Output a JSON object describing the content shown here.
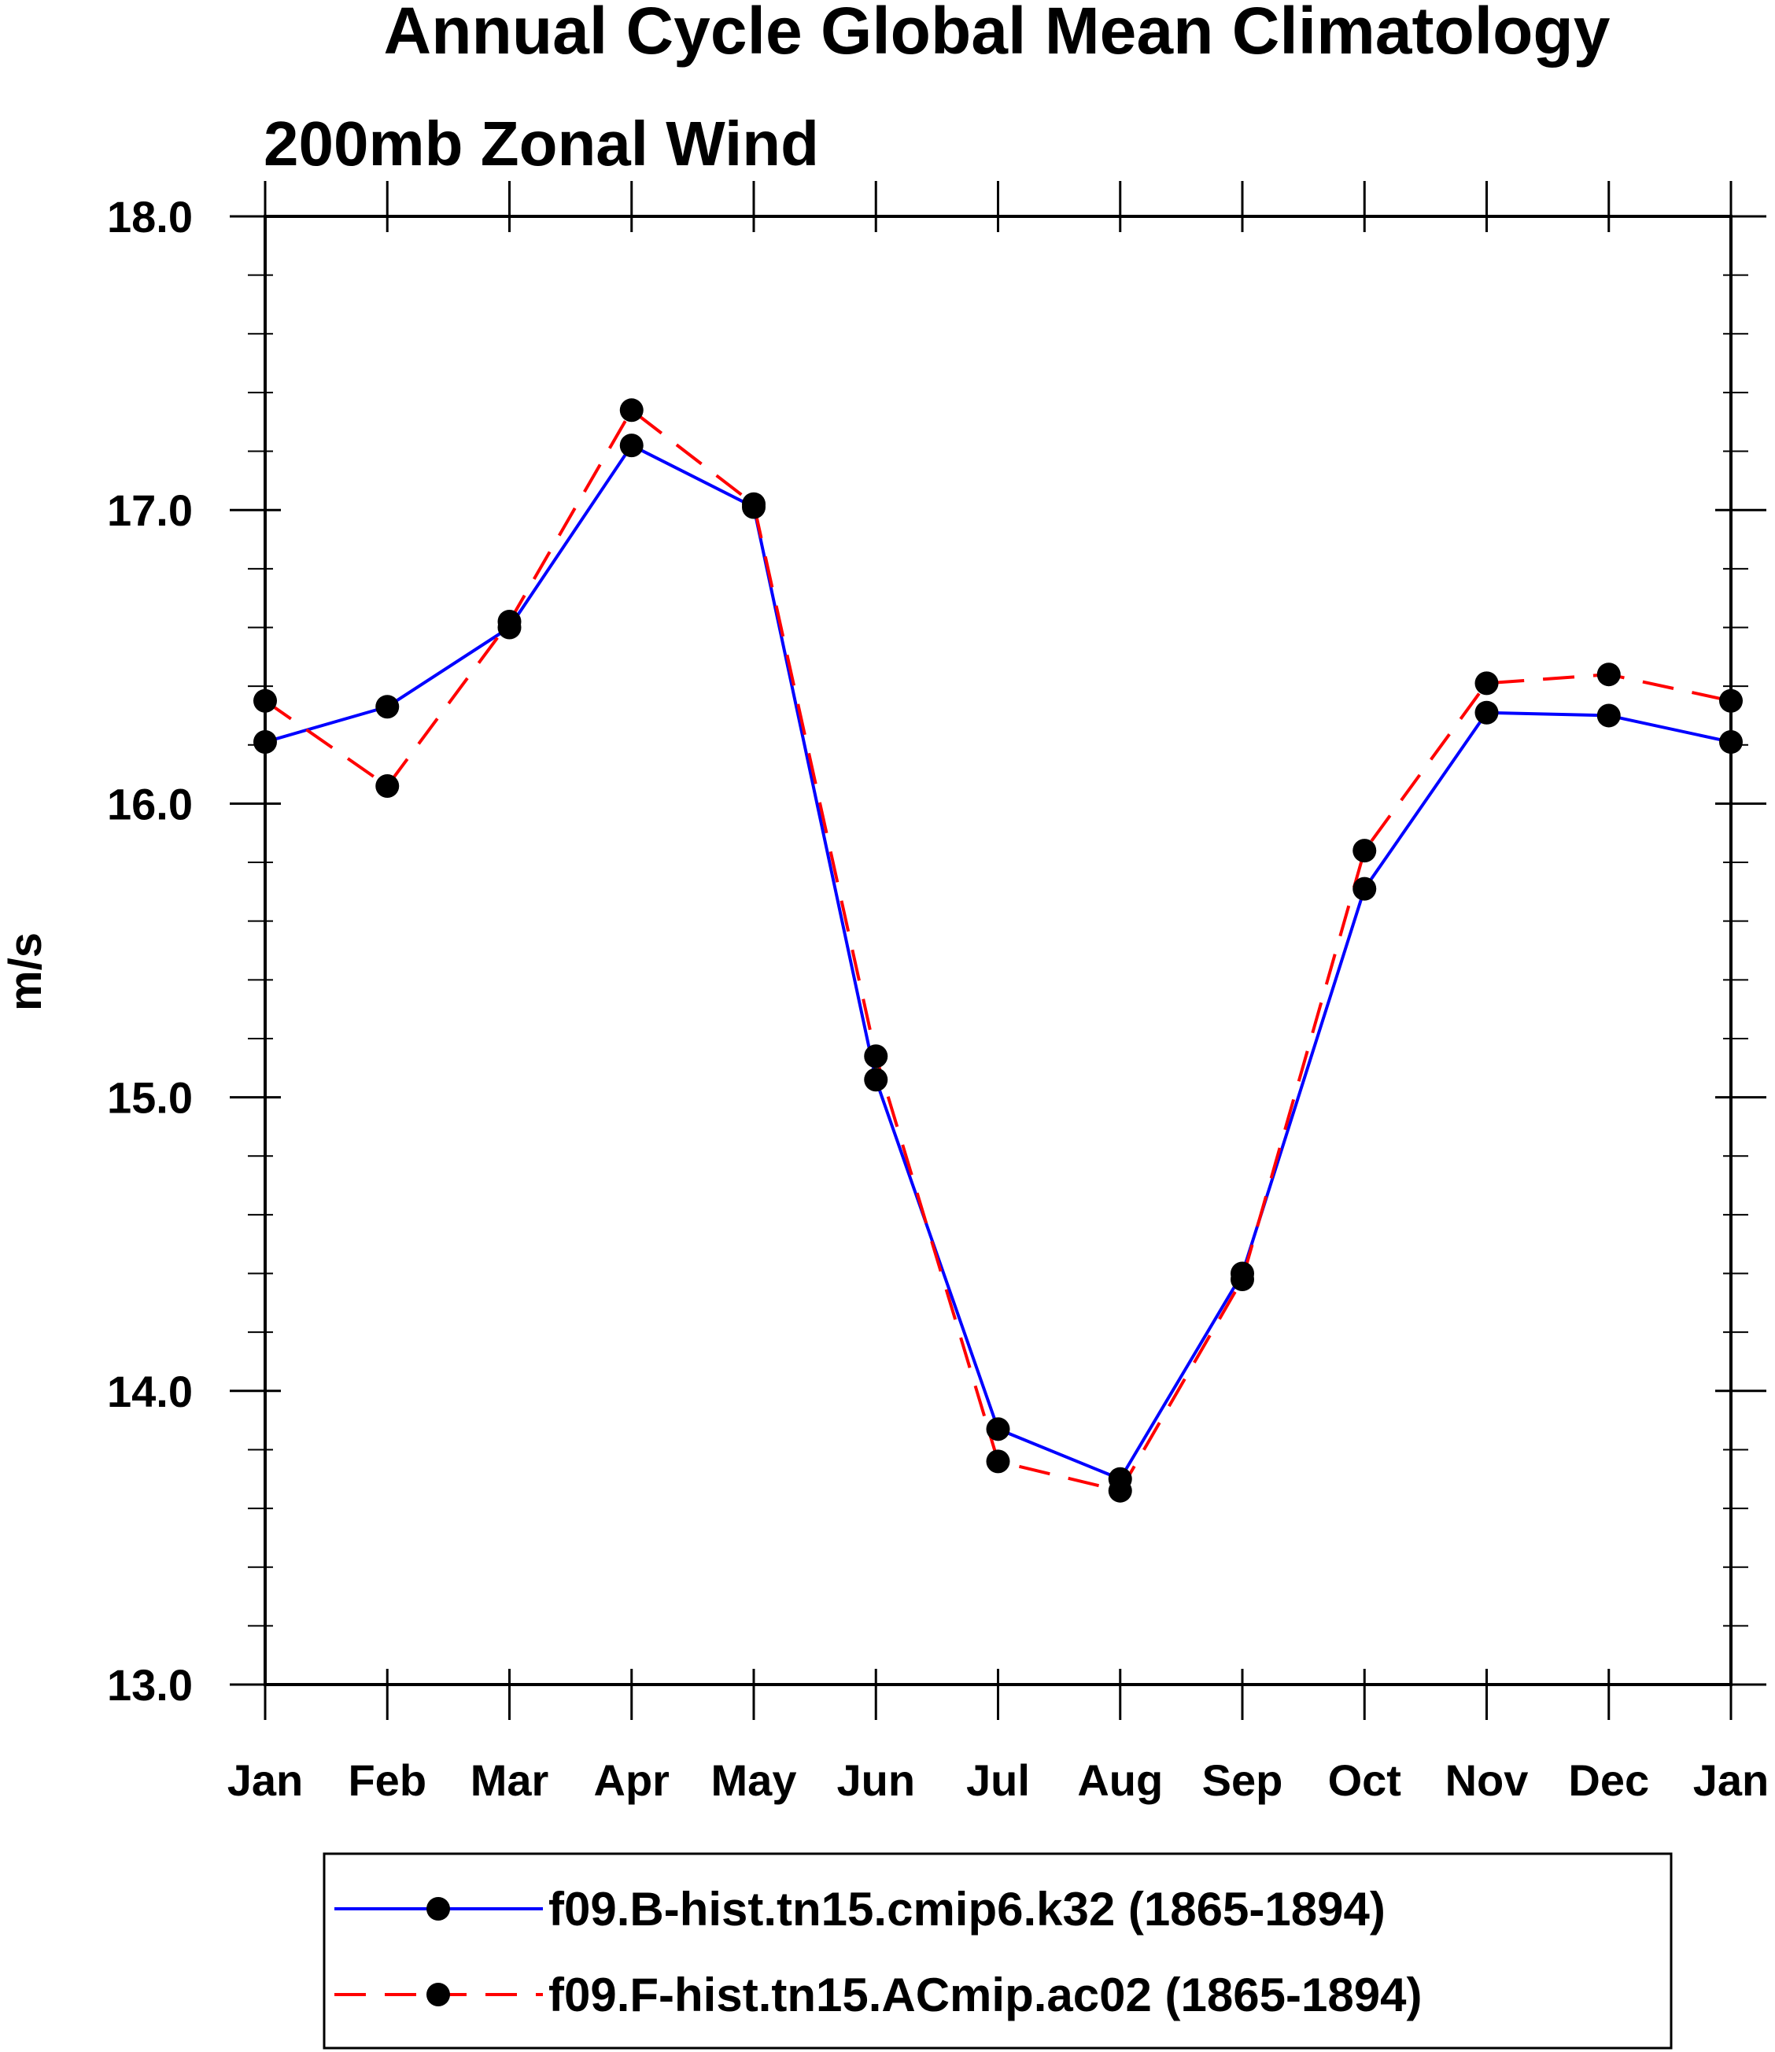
{
  "chart_data": {
    "type": "line",
    "title": "Annual Cycle Global Mean Climatology",
    "subtitle": "200mb Zonal Wind",
    "xlabel": "",
    "ylabel": "m/s",
    "categories": [
      "Jan",
      "Feb",
      "Mar",
      "Apr",
      "May",
      "Jun",
      "Jul",
      "Aug",
      "Sep",
      "Oct",
      "Nov",
      "Dec",
      "Jan"
    ],
    "ylim": [
      13.0,
      18.0
    ],
    "yticks": [
      "13.0",
      "14.0",
      "15.0",
      "16.0",
      "17.0",
      "18.0"
    ],
    "grid": false,
    "legend_position": "bottom",
    "series": [
      {
        "name": "f09.B-hist.tn15.cmip6.k32 (1865-1894)",
        "color": "#0000ff",
        "style": "solid",
        "values": [
          16.21,
          16.33,
          16.6,
          17.22,
          17.01,
          15.06,
          13.87,
          13.7,
          14.4,
          15.71,
          16.31,
          16.3,
          16.21
        ]
      },
      {
        "name": "f09.F-hist.tn15.ACmip.ac02 (1865-1894)",
        "color": "#ff0000",
        "style": "dashed",
        "values": [
          16.35,
          16.06,
          16.62,
          17.34,
          17.02,
          15.14,
          13.76,
          13.66,
          14.38,
          15.84,
          16.41,
          16.44,
          16.35
        ]
      }
    ]
  }
}
